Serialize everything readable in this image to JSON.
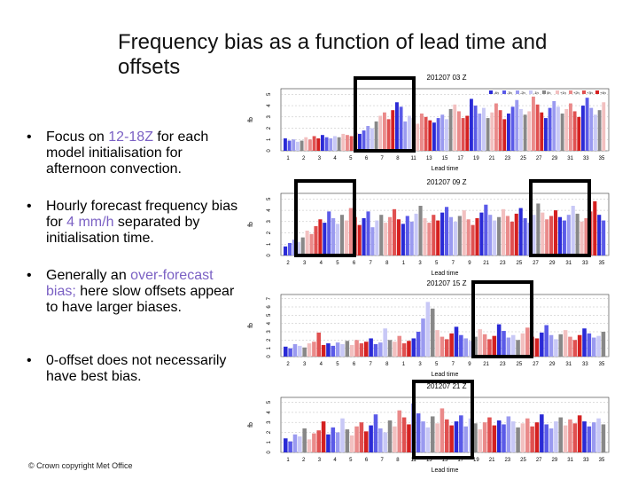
{
  "slide": {
    "title": "Frequency bias as a function of lead time and offsets",
    "bullets": [
      {
        "pre": "Focus on ",
        "hl": "12-18Z",
        "post": " for each model initialisation for afternoon convection."
      },
      {
        "pre": "Hourly forecast frequency bias for ",
        "hl": "4 mm/h",
        "post": " separated by initialisation time."
      },
      {
        "pre": "Generally an ",
        "hl": "over-forecast bias;",
        "post": " here slow offsets appear to have larger biases."
      },
      {
        "pre": "0-offset does not necessarily have best bias.",
        "hl": "",
        "post": ""
      }
    ],
    "bullet_symbol": "•",
    "footer": "© Crown copyright   Met Office"
  },
  "chart_data": [
    {
      "type": "bar",
      "title": "201207 03 Z",
      "xlabel": "Lead time",
      "ylabel": "fb",
      "x_ticks": [
        "1",
        "2",
        "3",
        "4",
        "5",
        "6",
        "7",
        "8",
        "11",
        "13",
        "15",
        "17",
        "19",
        "21",
        "23",
        "25",
        "27",
        "29",
        "31",
        "33",
        "35"
      ],
      "y_ticks": [
        "0",
        "1",
        "2",
        "3",
        "4",
        "5"
      ],
      "ylim": [
        0,
        5.5
      ],
      "legend": [
        "-4h",
        "-3h",
        "-2h",
        "-1h",
        "0h",
        "+1h",
        "+2h",
        "+3h",
        "+4h"
      ],
      "series_colors": [
        "#2a2ad6",
        "#5a5ae8",
        "#9a9af0",
        "#c8c8f6",
        "#888888",
        "#f2c0c0",
        "#ea8a8a",
        "#e05050",
        "#d42020"
      ],
      "values": [
        1.1,
        0.9,
        1.0,
        0.8,
        0.9,
        1.2,
        1.0,
        1.3,
        1.1,
        1.4,
        1.2,
        1.1,
        1.3,
        1.2,
        1.5,
        1.4,
        1.3,
        1.6,
        1.5,
        1.8,
        2.2,
        2.0,
        2.6,
        3.1,
        3.4,
        2.8,
        3.6,
        4.3,
        3.9,
        2.6,
        3.1,
        2.9,
        2.4,
        3.3,
        3.0,
        2.7,
        2.5,
        2.9,
        3.2,
        2.8,
        3.7,
        4.1,
        3.5,
        2.9,
        3.1,
        4.6,
        4.0,
        3.3,
        3.8,
        2.9,
        3.4,
        4.2,
        3.6,
        2.8,
        3.3,
        3.9,
        4.5,
        3.7,
        3.2,
        3.5,
        4.8,
        4.1,
        3.4,
        2.9,
        3.8,
        4.4,
        3.9,
        3.3,
        3.7,
        4.2,
        3.5,
        3.0,
        4.0,
        4.7,
        3.8,
        3.2,
        3.6,
        4.3
      ]
    },
    {
      "type": "bar",
      "title": "201207 09 Z",
      "xlabel": "Lead time",
      "ylabel": "fb",
      "x_ticks": [
        "2",
        "3",
        "4",
        "5",
        "6",
        "7",
        "8",
        "1",
        "3",
        "5",
        "7",
        "9",
        "21",
        "23",
        "25",
        "27",
        "29",
        "31",
        "33",
        "35"
      ],
      "y_ticks": [
        "0",
        "1",
        "2",
        "3",
        "4",
        "5"
      ],
      "ylim": [
        0,
        5.5
      ],
      "values": [
        0.8,
        1.1,
        1.4,
        1.2,
        1.6,
        2.2,
        1.9,
        2.6,
        3.2,
        2.9,
        3.9,
        3.3,
        2.8,
        3.6,
        3.1,
        4.2,
        3.4,
        2.7,
        3.3,
        3.9,
        2.5,
        3.1,
        3.6,
        2.9,
        3.4,
        4.1,
        3.2,
        2.8,
        3.5,
        3.0,
        3.7,
        4.4,
        3.3,
        2.9,
        3.6,
        3.1,
        3.8,
        4.3,
        3.4,
        3.0,
        3.5,
        4.0,
        3.2,
        2.7,
        3.3,
        3.8,
        4.5,
        3.6,
        3.1,
        3.4,
        4.1,
        3.5,
        3.0,
        3.7,
        4.2,
        3.3,
        2.9,
        3.6,
        4.6,
        3.8,
        3.2,
        3.5,
        4.0,
        3.4,
        3.1,
        3.6,
        4.4,
        3.7,
        3.0,
        3.3,
        3.9,
        4.8,
        3.6,
        3.1
      ]
    },
    {
      "type": "bar",
      "title": "201207 15 Z",
      "xlabel": "Lead time",
      "ylabel": "fb",
      "x_ticks": [
        "2",
        "3",
        "4",
        "5",
        "6",
        "7",
        "8",
        "1",
        "3",
        "5",
        "7",
        "9",
        "21",
        "23",
        "25",
        "27",
        "29",
        "31",
        "33",
        "35"
      ],
      "y_ticks": [
        "0",
        "1",
        "2",
        "3",
        "4",
        "5",
        "6",
        "7"
      ],
      "ylim": [
        0,
        7.5
      ],
      "values": [
        1.2,
        1.0,
        1.5,
        1.3,
        1.1,
        1.6,
        1.8,
        2.9,
        1.4,
        1.6,
        1.3,
        1.7,
        1.5,
        1.9,
        1.4,
        2.0,
        1.6,
        1.8,
        2.2,
        1.5,
        1.7,
        3.4,
        2.0,
        1.8,
        2.5,
        1.6,
        1.9,
        2.2,
        3.0,
        4.6,
        6.6,
        5.8,
        3.2,
        2.4,
        2.1,
        2.8,
        3.6,
        2.6,
        2.2,
        1.9,
        2.4,
        3.3,
        2.7,
        2.1,
        2.5,
        3.9,
        3.1,
        2.3,
        2.6,
        2.0,
        2.8,
        3.5,
        2.4,
        2.2,
        2.9,
        3.8,
        2.6,
        2.1,
        2.7,
        3.2,
        2.4,
        2.0,
        2.6,
        3.4,
        2.8,
        2.3,
        2.5,
        3.0
      ]
    },
    {
      "type": "bar",
      "title": "201207 21 Z",
      "xlabel": "Lead time",
      "ylabel": "fb",
      "x_ticks": [
        "1",
        "2",
        "3",
        "4",
        "5",
        "6",
        "7",
        "8",
        "11",
        "13",
        "15",
        "17",
        "19",
        "21",
        "23",
        "25",
        "27",
        "29",
        "31",
        "33",
        "35"
      ],
      "y_ticks": [
        "0",
        "1",
        "2",
        "3",
        "4",
        "5"
      ],
      "ylim": [
        0,
        5.5
      ],
      "values": [
        1.4,
        1.1,
        1.8,
        1.6,
        2.4,
        1.3,
        1.9,
        2.2,
        3.1,
        1.8,
        2.5,
        2.0,
        3.4,
        2.3,
        1.7,
        2.6,
        3.0,
        2.1,
        2.7,
        3.8,
        2.4,
        2.0,
        3.2,
        2.6,
        4.2,
        3.5,
        2.8,
        4.9,
        3.9,
        3.1,
        2.5,
        3.6,
        2.9,
        4.4,
        3.3,
        2.7,
        3.1,
        3.7,
        2.6,
        3.4,
        2.9,
        2.3,
        3.0,
        3.5,
        2.7,
        3.2,
        2.8,
        3.6,
        3.1,
        2.5,
        2.9,
        3.4,
        2.6,
        3.0,
        3.8,
        2.8,
        2.4,
        3.1,
        3.5,
        2.7,
        3.3,
        2.9,
        3.7,
        3.1,
        2.6,
        3.0,
        3.4,
        2.8
      ]
    }
  ]
}
